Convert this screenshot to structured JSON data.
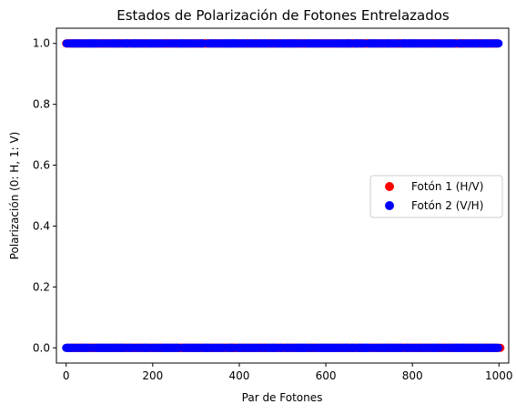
{
  "chart_data": {
    "type": "scatter",
    "title": "Estados de Polarización de Fotones Entrelazados",
    "xlabel": "Par de Fotones",
    "ylabel": "Polarización (0: H, 1: V)",
    "xlim": [
      -22.5,
      1022.5
    ],
    "ylim": [
      -0.05,
      1.05
    ],
    "xticks": [
      0,
      200,
      400,
      600,
      800,
      1000
    ],
    "yticks": [
      0.0,
      0.2,
      0.4,
      0.6,
      0.8,
      1.0
    ],
    "xtick_labels": [
      "0",
      "200",
      "400",
      "600",
      "800",
      "1000"
    ],
    "ytick_labels": [
      "0.0",
      "0.2",
      "0.4",
      "0.6",
      "0.8",
      "1.0"
    ],
    "grid": false,
    "legend": "center-right",
    "n_pairs": 1000,
    "series": [
      {
        "name": "Fotón 1 (H/V)",
        "color": "#ff0000",
        "values_note_levels": [
          0,
          1
        ]
      },
      {
        "name": "Fotón 2 (V/H)",
        "color": "#0000ff",
        "values_note_levels": [
          0,
          1
        ]
      }
    ]
  }
}
